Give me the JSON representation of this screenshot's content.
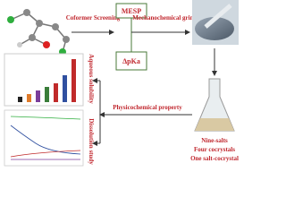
{
  "screening": {
    "label": "Coformer Screening",
    "methods": [
      "MESP",
      "ΔpKa"
    ]
  },
  "synthesis": {
    "label": "Mechanochemical grinding"
  },
  "products": [
    "Nine-salts",
    "Four cocrystals",
    "One salt-cocrystal"
  ],
  "evaluation": {
    "label": "Physicochemical property",
    "studies": [
      "Aqueous solubility",
      "Dissolution study"
    ]
  }
}
